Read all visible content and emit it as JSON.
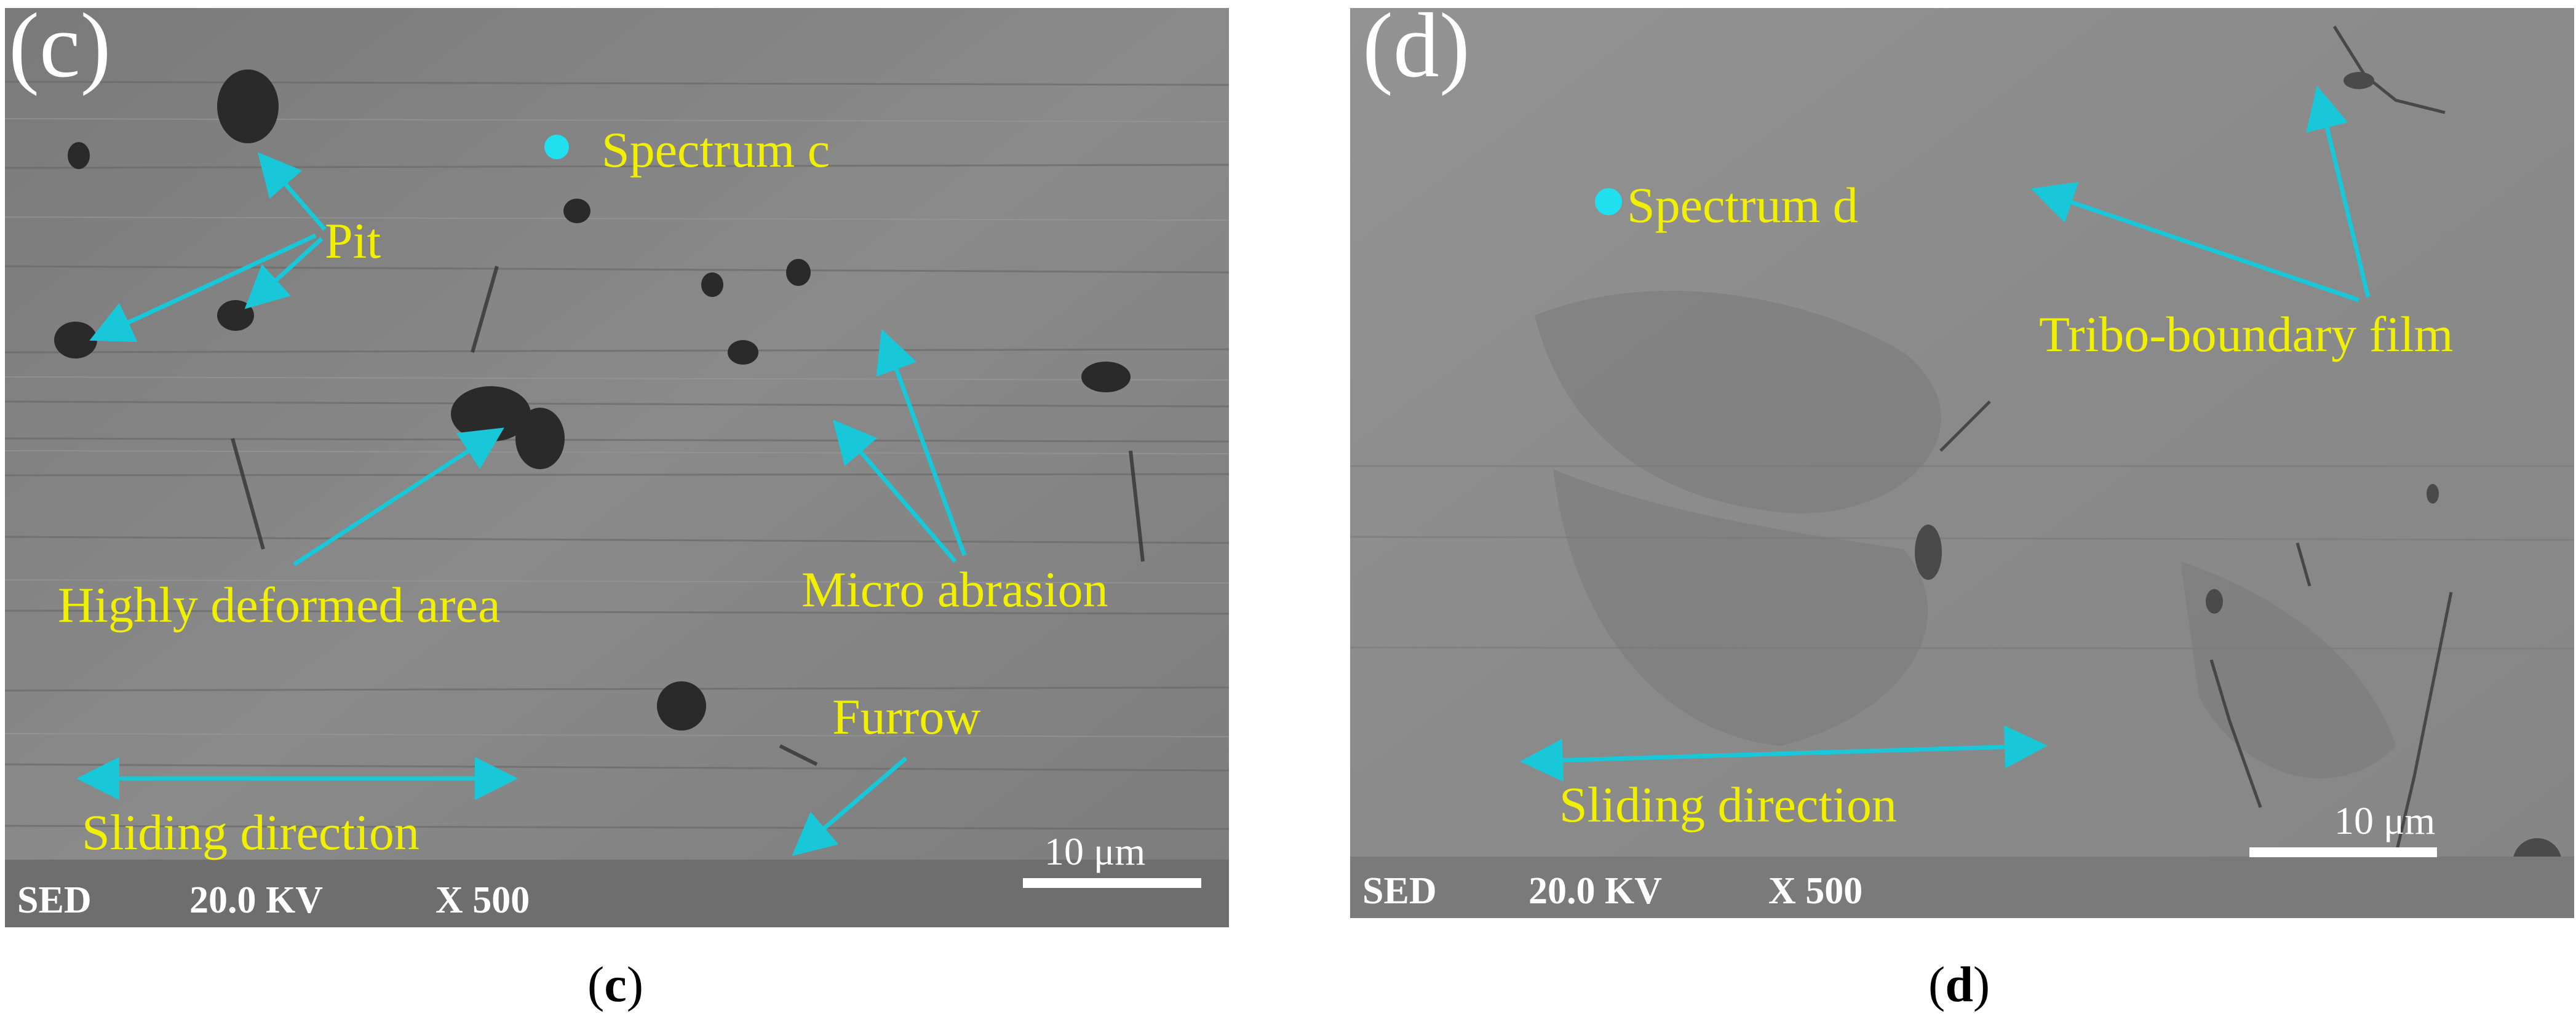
{
  "panels": {
    "c": {
      "letter": "(c)",
      "spectrum_label": "Spectrum c",
      "labels": {
        "pit": "Pit",
        "deformed": "Highly deformed area",
        "micro_abrasion": "Micro abrasion",
        "furrow": "Furrow",
        "sliding": "Sliding direction"
      },
      "scale_label": "10 μm",
      "info_bar": {
        "mode": "SED",
        "voltage": "20.0 KV",
        "magnification": "X 500"
      }
    },
    "d": {
      "letter": "(d)",
      "spectrum_label": "Spectrum d",
      "labels": {
        "tribo": "Tribo-boundary film",
        "sliding": "Sliding direction"
      },
      "scale_label": "10 μm",
      "info_bar": {
        "mode": "SED",
        "voltage": "20.0 KV",
        "magnification": "X 500"
      }
    }
  },
  "captions": {
    "c": "c",
    "d": "d"
  },
  "colors": {
    "annotation_text": "#f0f000",
    "arrow": "#18c8d8",
    "marker": "#20e0f0"
  }
}
